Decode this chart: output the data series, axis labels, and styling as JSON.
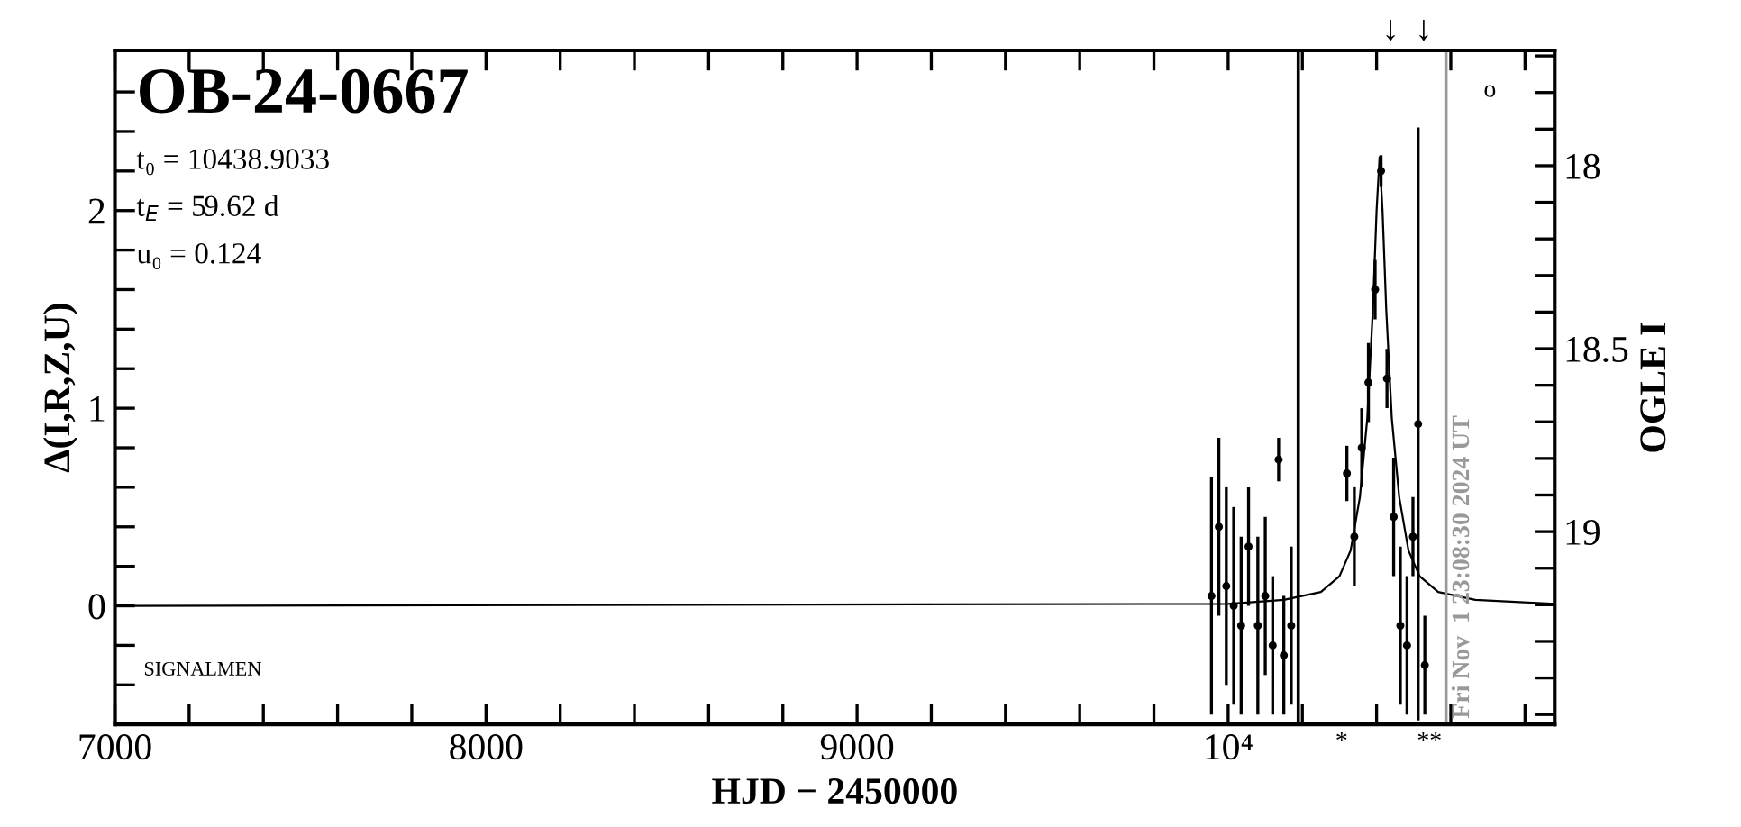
{
  "chart_data": {
    "type": "scatter",
    "title": "OB-24-0667",
    "xlabel": "HJD − 2450000",
    "ylabel": "Δ(I,R,Z,U)",
    "y2label": "OGLE I",
    "annotations": [
      "t₀ = 10438.9033",
      "t$_{E}$ = 59.62 d",
      "u₀ = 0.124",
      "SIGNALMEN",
      "↓",
      "↓",
      "*",
      "**",
      "o",
      "Fri Nov  1 23:08:30 2024 UT"
    ],
    "xlim": [
      7000,
      10880
    ],
    "ylim": [
      -0.6,
      2.81
    ],
    "y2lim": [
      19.527,
      17.685
    ],
    "xticks": [
      7000,
      {
        "value": 7200,
        "label": null
      },
      {
        "value": 7400,
        "label": null
      },
      {
        "value": 7600,
        "label": null
      },
      {
        "value": 7800,
        "label": null
      },
      8000,
      {
        "value": 8200,
        "label": null
      },
      {
        "value": 8400,
        "label": null
      },
      {
        "value": 8600,
        "label": null
      },
      {
        "value": 8800,
        "label": null
      },
      9000,
      {
        "value": 9200,
        "label": null
      },
      {
        "value": 9400,
        "label": null
      },
      {
        "value": 9600,
        "label": null
      },
      {
        "value": 9800,
        "label": null
      },
      {
        "value": 10000,
        "label": "10⁴"
      },
      {
        "value": 10200,
        "label": null
      },
      {
        "value": 10400,
        "label": null
      },
      {
        "value": 10600,
        "label": null
      },
      {
        "value": 10800,
        "label": null
      }
    ],
    "yticks": [
      {
        "value": -0.4,
        "label": null
      },
      {
        "value": -0.2,
        "label": null
      },
      0,
      {
        "value": 0.2,
        "label": null
      },
      {
        "value": 0.4,
        "label": null
      },
      {
        "value": 0.6,
        "label": null
      },
      {
        "value": 0.8,
        "label": null
      },
      1,
      {
        "value": 1.2,
        "label": null
      },
      {
        "value": 1.4,
        "label": null
      },
      {
        "value": 1.6,
        "label": null
      },
      {
        "value": 1.8,
        "label": null
      },
      2,
      {
        "value": 2.2,
        "label": null
      },
      {
        "value": 2.4,
        "label": null
      },
      {
        "value": 2.6,
        "label": null
      }
    ],
    "y2ticks": [
      {
        "value": 17.7,
        "label": null
      },
      {
        "value": 17.8,
        "label": null
      },
      {
        "value": 17.9,
        "label": null
      },
      18,
      {
        "value": 18.1,
        "label": null
      },
      {
        "value": 18.2,
        "label": null
      },
      {
        "value": 18.3,
        "label": null
      },
      {
        "value": 18.4,
        "label": null
      },
      18.5,
      {
        "value": 18.6,
        "label": null
      },
      {
        "value": 18.7,
        "label": null
      },
      {
        "value": 18.8,
        "label": null
      },
      {
        "value": 18.9,
        "label": null
      },
      19,
      {
        "value": 19.1,
        "label": null
      },
      {
        "value": 19.2,
        "label": null
      },
      {
        "value": 19.3,
        "label": null
      },
      {
        "value": 19.4,
        "label": null
      },
      {
        "value": 19.5,
        "label": null
      }
    ],
    "ref_lines": [
      {
        "axis": "x",
        "value": 10189,
        "color": "#000000"
      },
      {
        "axis": "x",
        "value": 10587,
        "color": "#999999"
      }
    ],
    "grid": false,
    "legend": false,
    "marker": "circle",
    "series": [
      {
        "color": "#000000",
        "x": [
          9955,
          9975,
          9995,
          10015,
          10035,
          10055,
          10080,
          10100,
          10120,
          10136,
          10150,
          10170,
          10320,
          10340,
          10360,
          10378,
          10396,
          10412,
          10428,
          10446,
          10464,
          10482,
          10498,
          10512,
          10530
        ],
        "values": [
          0.05,
          0.4,
          0.1,
          0.0,
          -0.1,
          0.3,
          -0.1,
          0.05,
          -0.2,
          0.74,
          -0.25,
          -0.1,
          0.67,
          0.35,
          0.8,
          1.13,
          1.6,
          2.2,
          1.15,
          0.45,
          -0.1,
          -0.2,
          0.35,
          0.92,
          -0.3
        ],
        "errors": [
          0.6,
          0.45,
          0.5,
          0.5,
          0.45,
          0.3,
          0.45,
          0.4,
          0.35,
          0.11,
          0.3,
          0.4,
          0.14,
          0.25,
          0.2,
          0.2,
          0.15,
          0.08,
          0.15,
          0.3,
          0.4,
          0.35,
          0.2,
          1.5,
          0.25
        ]
      },
      {
        "type": "line",
        "color": "#000000",
        "marker": "none",
        "line_style": "solid",
        "x": [
          7000,
          10000,
          10150,
          10250,
          10300,
          10330,
          10355,
          10375,
          10390,
          10400,
          10408,
          10416,
          10426,
          10441,
          10461,
          10486,
          10516,
          10566,
          10666,
          10880
        ],
        "values": [
          0.0,
          0.01,
          0.03,
          0.07,
          0.15,
          0.28,
          0.55,
          0.95,
          1.5,
          2.0,
          2.27,
          2.0,
          1.5,
          0.95,
          0.55,
          0.28,
          0.15,
          0.07,
          0.03,
          0.01
        ]
      }
    ]
  }
}
